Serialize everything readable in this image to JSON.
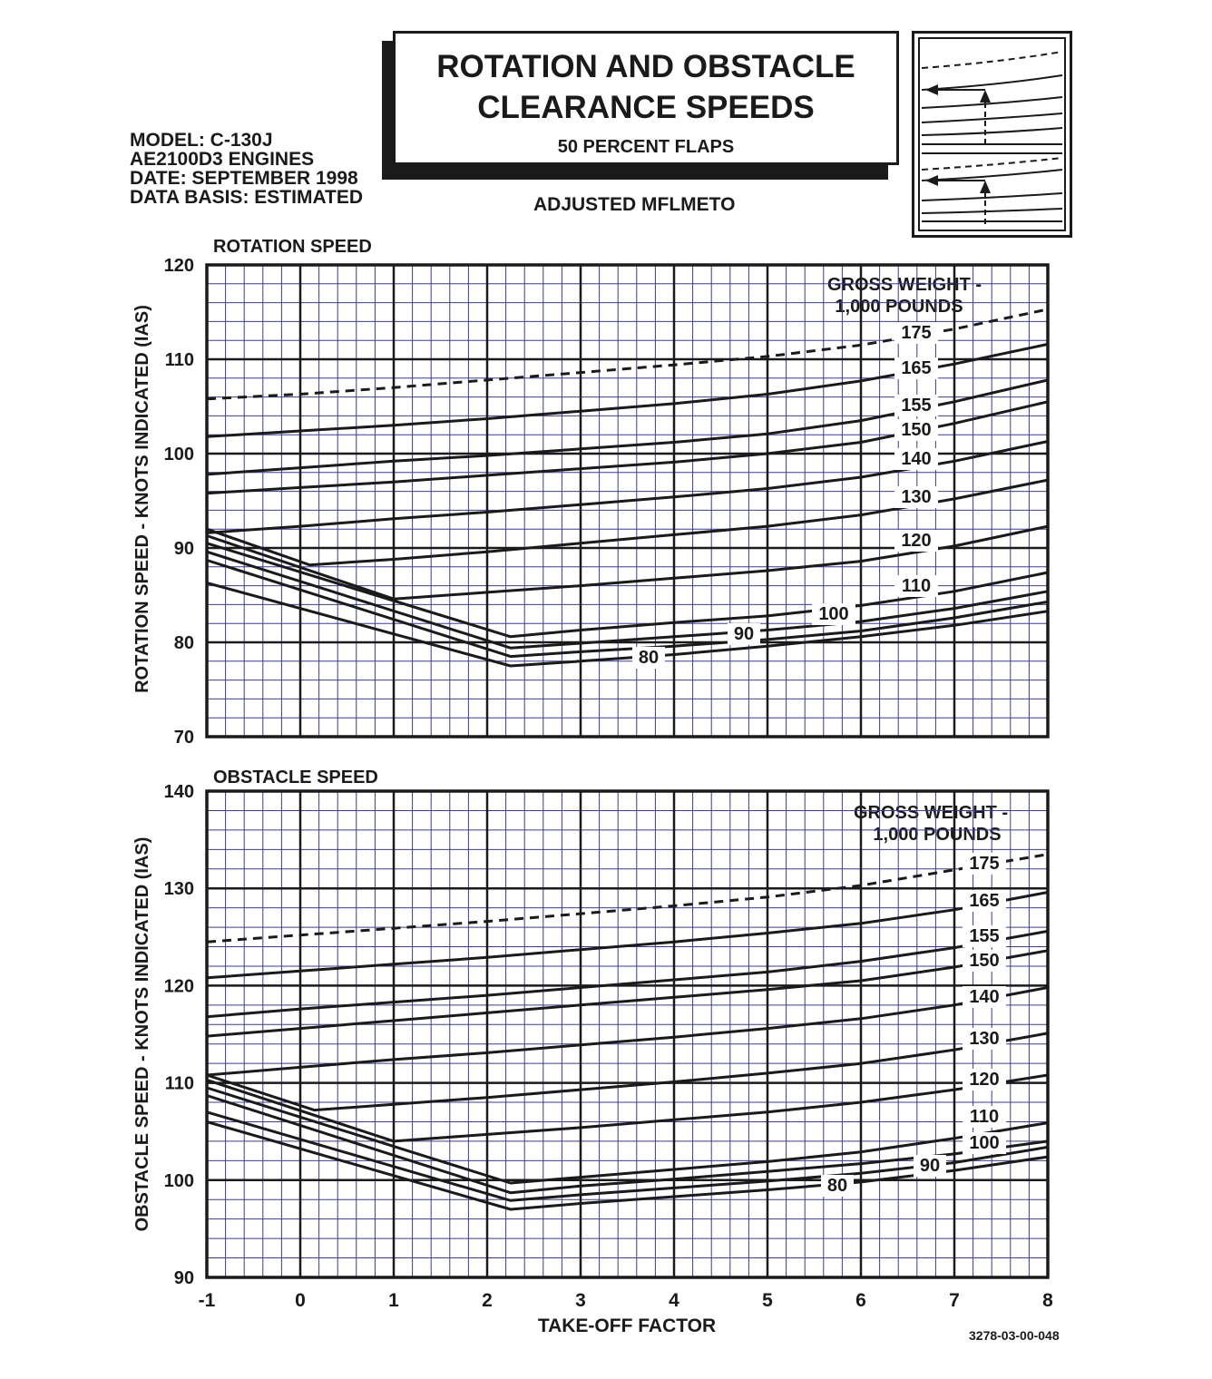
{
  "header": {
    "title_line1": "ROTATION  AND OBSTACLE",
    "title_line2": "CLEARANCE SPEEDS",
    "subtitle": "50 PERCENT FLAPS",
    "mode": "ADJUSTED MFLMETO",
    "meta": [
      "MODEL: C-130J",
      "AE2100D3 ENGINES",
      "DATE: SEPTEMBER 1998",
      "DATA BASIS: ESTIMATED"
    ],
    "figure_id": "3278-03-00-048",
    "icon": "chart-reading-guide-icon"
  },
  "colors": {
    "ink": "#1a1a1a",
    "minor_grid": "#3b3b8c",
    "paper": "#ffffff"
  },
  "chart_data": [
    {
      "type": "line",
      "title": "ROTATION SPEED",
      "xlabel": "",
      "ylabel": "ROTATION  SPEED - KNOTS INDICATED (IAS)",
      "xlim": [
        -1,
        8
      ],
      "ylim": [
        70,
        120
      ],
      "x_ticks": [
        "-1",
        "0",
        "1",
        "2",
        "3",
        "4",
        "5",
        "6",
        "7",
        "8"
      ],
      "y_ticks": [
        "70",
        "80",
        "90",
        "100",
        "110",
        "120"
      ],
      "grid": true,
      "legend_title_line1": "GROSS WEIGHT -",
      "legend_title_line2": "1,000 POUNDS",
      "series": [
        {
          "name": "175",
          "dashed": true,
          "points": [
            [
              -1,
              105.8
            ],
            [
              0,
              106.3
            ],
            [
              1,
              107
            ],
            [
              2,
              107.8
            ],
            [
              3,
              108.6
            ],
            [
              4,
              109.4
            ],
            [
              5,
              110.3
            ],
            [
              6,
              111.5
            ],
            [
              7,
              113.2
            ],
            [
              8,
              115.3
            ]
          ]
        },
        {
          "name": "165",
          "points": [
            [
              -1,
              101.8
            ],
            [
              0,
              102.4
            ],
            [
              1,
              103
            ],
            [
              2,
              103.7
            ],
            [
              3,
              104.5
            ],
            [
              4,
              105.3
            ],
            [
              5,
              106.3
            ],
            [
              6,
              107.7
            ],
            [
              7,
              109.5
            ],
            [
              8,
              111.6
            ]
          ]
        },
        {
          "name": "155",
          "points": [
            [
              -1,
              97.8
            ],
            [
              0,
              98.5
            ],
            [
              1,
              99.2
            ],
            [
              2,
              99.8
            ],
            [
              3,
              100.5
            ],
            [
              4,
              101.2
            ],
            [
              5,
              102.1
            ],
            [
              6,
              103.5
            ],
            [
              7,
              105.5
            ],
            [
              8,
              107.8
            ]
          ]
        },
        {
          "name": "150",
          "points": [
            [
              -1,
              95.8
            ],
            [
              0,
              96.4
            ],
            [
              1,
              97
            ],
            [
              2,
              97.7
            ],
            [
              3,
              98.4
            ],
            [
              4,
              99.1
            ],
            [
              5,
              100
            ],
            [
              6,
              101.2
            ],
            [
              7,
              103.2
            ],
            [
              8,
              105.5
            ]
          ]
        },
        {
          "name": "140",
          "points": [
            [
              -1,
              91.6
            ],
            [
              0,
              92.3
            ],
            [
              1,
              93.1
            ],
            [
              2,
              93.8
            ],
            [
              3,
              94.6
            ],
            [
              4,
              95.4
            ],
            [
              5,
              96.3
            ],
            [
              6,
              97.5
            ],
            [
              7,
              99.2
            ],
            [
              8,
              101.3
            ]
          ]
        },
        {
          "name": "130",
          "points": [
            [
              -1,
              92
            ],
            [
              0.1,
              88.2
            ],
            [
              1,
              88.8
            ],
            [
              2,
              89.6
            ],
            [
              3,
              90.5
            ],
            [
              4,
              91.4
            ],
            [
              5,
              92.3
            ],
            [
              6,
              93.5
            ],
            [
              7,
              95.2
            ],
            [
              8,
              97.2
            ]
          ]
        },
        {
          "name": "120",
          "points": [
            [
              -1,
              91.3
            ],
            [
              1,
              84.6
            ],
            [
              2,
              85.3
            ],
            [
              3,
              86
            ],
            [
              4,
              86.8
            ],
            [
              5,
              87.6
            ],
            [
              6,
              88.6
            ],
            [
              7,
              90.2
            ],
            [
              8,
              92.3
            ]
          ]
        },
        {
          "name": "110",
          "points": [
            [
              -1,
              90.5
            ],
            [
              2.25,
              80.6
            ],
            [
              3,
              81.3
            ],
            [
              4,
              82.1
            ],
            [
              5,
              82.8
            ],
            [
              6,
              83.9
            ],
            [
              7,
              85.4
            ],
            [
              8,
              87.4
            ]
          ]
        },
        {
          "name": "100",
          "points": [
            [
              -1,
              89.6
            ],
            [
              2.25,
              79.4
            ],
            [
              3,
              79.9
            ],
            [
              4,
              80.6
            ],
            [
              5,
              81.3
            ],
            [
              6,
              82.2
            ],
            [
              7,
              83.6
            ],
            [
              8,
              85.4
            ]
          ]
        },
        {
          "name": "90",
          "points": [
            [
              -1,
              88.7
            ],
            [
              2.25,
              78.5
            ],
            [
              3,
              79
            ],
            [
              4,
              79.6
            ],
            [
              5,
              80.3
            ],
            [
              6,
              81.2
            ],
            [
              7,
              82.6
            ],
            [
              8,
              84.3
            ]
          ]
        },
        {
          "name": "80",
          "points": [
            [
              -1,
              86.3
            ],
            [
              2.25,
              77.5
            ],
            [
              3,
              78
            ],
            [
              4,
              78.7
            ],
            [
              5,
              79.6
            ],
            [
              6,
              80.6
            ],
            [
              7,
              81.8
            ],
            [
              8,
              83.3
            ]
          ]
        }
      ]
    },
    {
      "type": "line",
      "title": "OBSTACLE SPEED",
      "xlabel": "TAKE-OFF FACTOR",
      "ylabel": "OBSTACLE  SPEED - KNOTS INDICATED (IAS)",
      "xlim": [
        -1,
        8
      ],
      "ylim": [
        90,
        140
      ],
      "x_ticks": [
        "-1",
        "0",
        "1",
        "2",
        "3",
        "4",
        "5",
        "6",
        "7",
        "8"
      ],
      "y_ticks": [
        "90",
        "100",
        "110",
        "120",
        "130",
        "140"
      ],
      "grid": true,
      "legend_title_line1": "GROSS WEIGHT -",
      "legend_title_line2": "1,000 POUNDS",
      "series": [
        {
          "name": "175",
          "dashed": true,
          "points": [
            [
              -1,
              124.5
            ],
            [
              0,
              125.2
            ],
            [
              1,
              125.9
            ],
            [
              2,
              126.6
            ],
            [
              3,
              127.4
            ],
            [
              4,
              128.2
            ],
            [
              5,
              129.1
            ],
            [
              6,
              130.3
            ],
            [
              7,
              131.9
            ],
            [
              8,
              133.5
            ]
          ]
        },
        {
          "name": "165",
          "points": [
            [
              -1,
              120.8
            ],
            [
              0,
              121.5
            ],
            [
              1,
              122.2
            ],
            [
              2,
              122.9
            ],
            [
              3,
              123.7
            ],
            [
              4,
              124.5
            ],
            [
              5,
              125.4
            ],
            [
              6,
              126.4
            ],
            [
              7,
              127.8
            ],
            [
              8,
              129.6
            ]
          ]
        },
        {
          "name": "155",
          "points": [
            [
              -1,
              116.8
            ],
            [
              0,
              117.6
            ],
            [
              1,
              118.3
            ],
            [
              2,
              119
            ],
            [
              3,
              119.8
            ],
            [
              4,
              120.6
            ],
            [
              5,
              121.4
            ],
            [
              6,
              122.5
            ],
            [
              7,
              123.9
            ],
            [
              8,
              125.6
            ]
          ]
        },
        {
          "name": "150",
          "points": [
            [
              -1,
              114.8
            ],
            [
              0,
              115.6
            ],
            [
              1,
              116.4
            ],
            [
              2,
              117.2
            ],
            [
              3,
              118
            ],
            [
              4,
              118.8
            ],
            [
              5,
              119.6
            ],
            [
              6,
              120.5
            ],
            [
              7,
              121.9
            ],
            [
              8,
              123.6
            ]
          ]
        },
        {
          "name": "140",
          "points": [
            [
              -1,
              110.8
            ],
            [
              0,
              111.6
            ],
            [
              1,
              112.4
            ],
            [
              2,
              113.1
            ],
            [
              3,
              113.9
            ],
            [
              4,
              114.7
            ],
            [
              5,
              115.6
            ],
            [
              6,
              116.6
            ],
            [
              7,
              118
            ],
            [
              8,
              119.8
            ]
          ]
        },
        {
          "name": "130",
          "points": [
            [
              -1,
              110.8
            ],
            [
              0.15,
              107.2
            ],
            [
              1,
              107.8
            ],
            [
              2,
              108.5
            ],
            [
              3,
              109.3
            ],
            [
              4,
              110.1
            ],
            [
              5,
              111
            ],
            [
              6,
              112
            ],
            [
              7,
              113.4
            ],
            [
              8,
              115.1
            ]
          ]
        },
        {
          "name": "120",
          "points": [
            [
              -1,
              110.3
            ],
            [
              1,
              104
            ],
            [
              2,
              104.7
            ],
            [
              3,
              105.4
            ],
            [
              4,
              106.2
            ],
            [
              5,
              107
            ],
            [
              6,
              108
            ],
            [
              7,
              109.3
            ],
            [
              8,
              110.8
            ]
          ]
        },
        {
          "name": "110",
          "points": [
            [
              -1,
              109.5
            ],
            [
              2.25,
              99.7
            ],
            [
              3,
              100.3
            ],
            [
              4,
              101.1
            ],
            [
              5,
              101.9
            ],
            [
              6,
              102.9
            ],
            [
              7,
              104.3
            ],
            [
              8,
              105.9
            ]
          ]
        },
        {
          "name": "100",
          "points": [
            [
              -1,
              108.7
            ],
            [
              2.25,
              98.7
            ],
            [
              3,
              99.4
            ],
            [
              4,
              100.1
            ],
            [
              5,
              100.9
            ],
            [
              6,
              101.7
            ],
            [
              7,
              102.7
            ],
            [
              8,
              104
            ]
          ]
        },
        {
          "name": "90",
          "points": [
            [
              -1,
              107
            ],
            [
              2.25,
              97.9
            ],
            [
              3,
              98.5
            ],
            [
              4,
              99.2
            ],
            [
              5,
              99.9
            ],
            [
              6,
              100.7
            ],
            [
              7,
              101.8
            ],
            [
              8,
              103.4
            ]
          ]
        },
        {
          "name": "80",
          "points": [
            [
              -1,
              106
            ],
            [
              2.25,
              97
            ],
            [
              3,
              97.6
            ],
            [
              4,
              98.3
            ],
            [
              5,
              99
            ],
            [
              6,
              99.8
            ],
            [
              7,
              101
            ],
            [
              8,
              102.4
            ]
          ]
        }
      ]
    }
  ]
}
